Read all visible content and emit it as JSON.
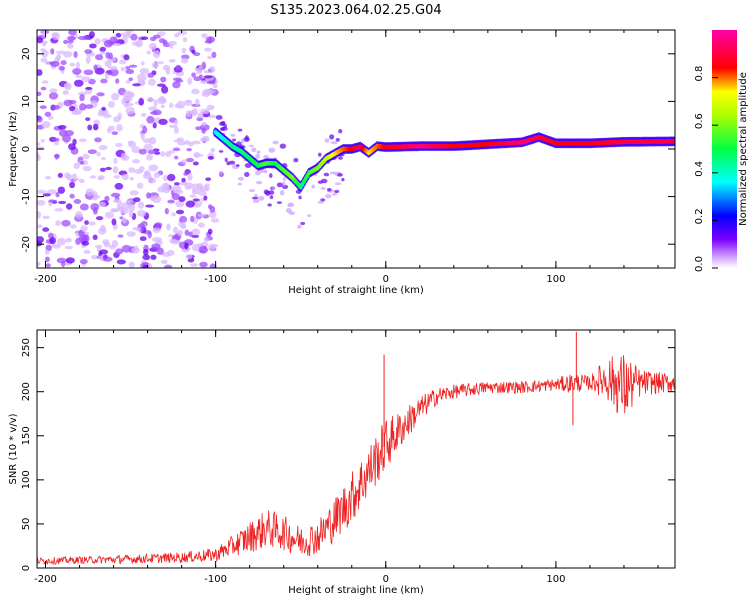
{
  "title": "S135.2023.064.02.25.G04",
  "chart_data": [
    {
      "type": "heatmap",
      "name": "spectrogram",
      "xlabel": "Height of straight line (km)",
      "ylabel": "Frequency (Hz)",
      "xlim": [
        -205,
        170
      ],
      "ylim": [
        -25,
        25
      ],
      "xticks": [
        -200,
        -100,
        0,
        100
      ],
      "xtick_labels": [
        "-200",
        "-100",
        "0",
        "100"
      ],
      "yticks": [
        -20,
        -10,
        0,
        10,
        20
      ],
      "ytick_labels": [
        "-20",
        "-10",
        "0",
        "10",
        "20"
      ],
      "ridge": {
        "x": [
          -100,
          -95,
          -90,
          -85,
          -80,
          -75,
          -70,
          -65,
          -60,
          -55,
          -50,
          -45,
          -40,
          -35,
          -30,
          -25,
          -20,
          -15,
          -10,
          -5,
          0,
          10,
          20,
          40,
          60,
          80,
          90,
          100,
          120,
          140,
          170
        ],
        "y": [
          3.5,
          2,
          0.5,
          -0.5,
          -2,
          -3.5,
          -3,
          -3,
          -4.5,
          -6,
          -8,
          -5,
          -4,
          -2,
          -1,
          0,
          0,
          0.5,
          -0.8,
          0.6,
          0.4,
          0.5,
          0.6,
          0.6,
          1.0,
          1.4,
          2.5,
          1.2,
          1.2,
          1.5,
          1.6
        ],
        "amplitude": [
          0.35,
          0.4,
          0.45,
          0.45,
          0.5,
          0.5,
          0.55,
          0.5,
          0.55,
          0.6,
          0.45,
          0.55,
          0.6,
          0.65,
          0.75,
          0.8,
          0.85,
          0.9,
          0.75,
          0.8,
          0.85,
          0.9,
          0.95,
          0.85,
          0.85,
          0.95,
          0.9,
          0.85,
          0.85,
          0.9,
          0.9
        ]
      },
      "noise_region_x": [
        -205,
        -100
      ],
      "colorbar": {
        "label": "Normalized spectral amplitude",
        "ticks": [
          0,
          0.2,
          0.4,
          0.6,
          0.8
        ],
        "tick_labels": [
          "0.0",
          "0.2",
          "0.4",
          "0.6",
          "0.8"
        ],
        "range": [
          0,
          1
        ],
        "colors": [
          "#ffffff",
          "#7a00ff",
          "#0000ff",
          "#00ffff",
          "#00ff00",
          "#ffff00",
          "#ff0000",
          "#ff00ff"
        ]
      }
    },
    {
      "type": "line",
      "name": "snr",
      "xlabel": "Height of straight line (km)",
      "ylabel": "SNR (10 * v/v)",
      "xlim": [
        -205,
        170
      ],
      "ylim": [
        0,
        270
      ],
      "xticks": [
        -200,
        -100,
        0,
        100
      ],
      "xtick_labels": [
        "-200",
        "-100",
        "0",
        "100"
      ],
      "yticks": [
        0,
        50,
        100,
        150,
        200,
        250
      ],
      "ytick_labels": [
        "0",
        "50",
        "100",
        "150",
        "200",
        "250"
      ],
      "color": "#ee2222",
      "series": [
        {
          "name": "SNR",
          "x": [
            -205,
            -180,
            -150,
            -120,
            -100,
            -90,
            -80,
            -70,
            -60,
            -50,
            -40,
            -30,
            -20,
            -10,
            0,
            10,
            20,
            30,
            40,
            60,
            80,
            100,
            110,
            120,
            130,
            140,
            150,
            170
          ],
          "y": [
            8,
            9,
            10,
            12,
            15,
            25,
            35,
            45,
            40,
            30,
            35,
            55,
            80,
            110,
            140,
            160,
            180,
            195,
            200,
            205,
            205,
            208,
            210,
            210,
            215,
            205,
            210,
            210
          ],
          "noise": [
            4,
            4,
            5,
            6,
            8,
            12,
            18,
            22,
            20,
            18,
            20,
            25,
            30,
            30,
            30,
            20,
            15,
            10,
            8,
            7,
            7,
            7,
            12,
            8,
            25,
            40,
            15,
            10
          ]
        }
      ],
      "spikes": [
        {
          "x": -1,
          "y": 242
        },
        {
          "x": 112,
          "y": 268
        },
        {
          "x": 110,
          "y": 162
        }
      ]
    }
  ]
}
